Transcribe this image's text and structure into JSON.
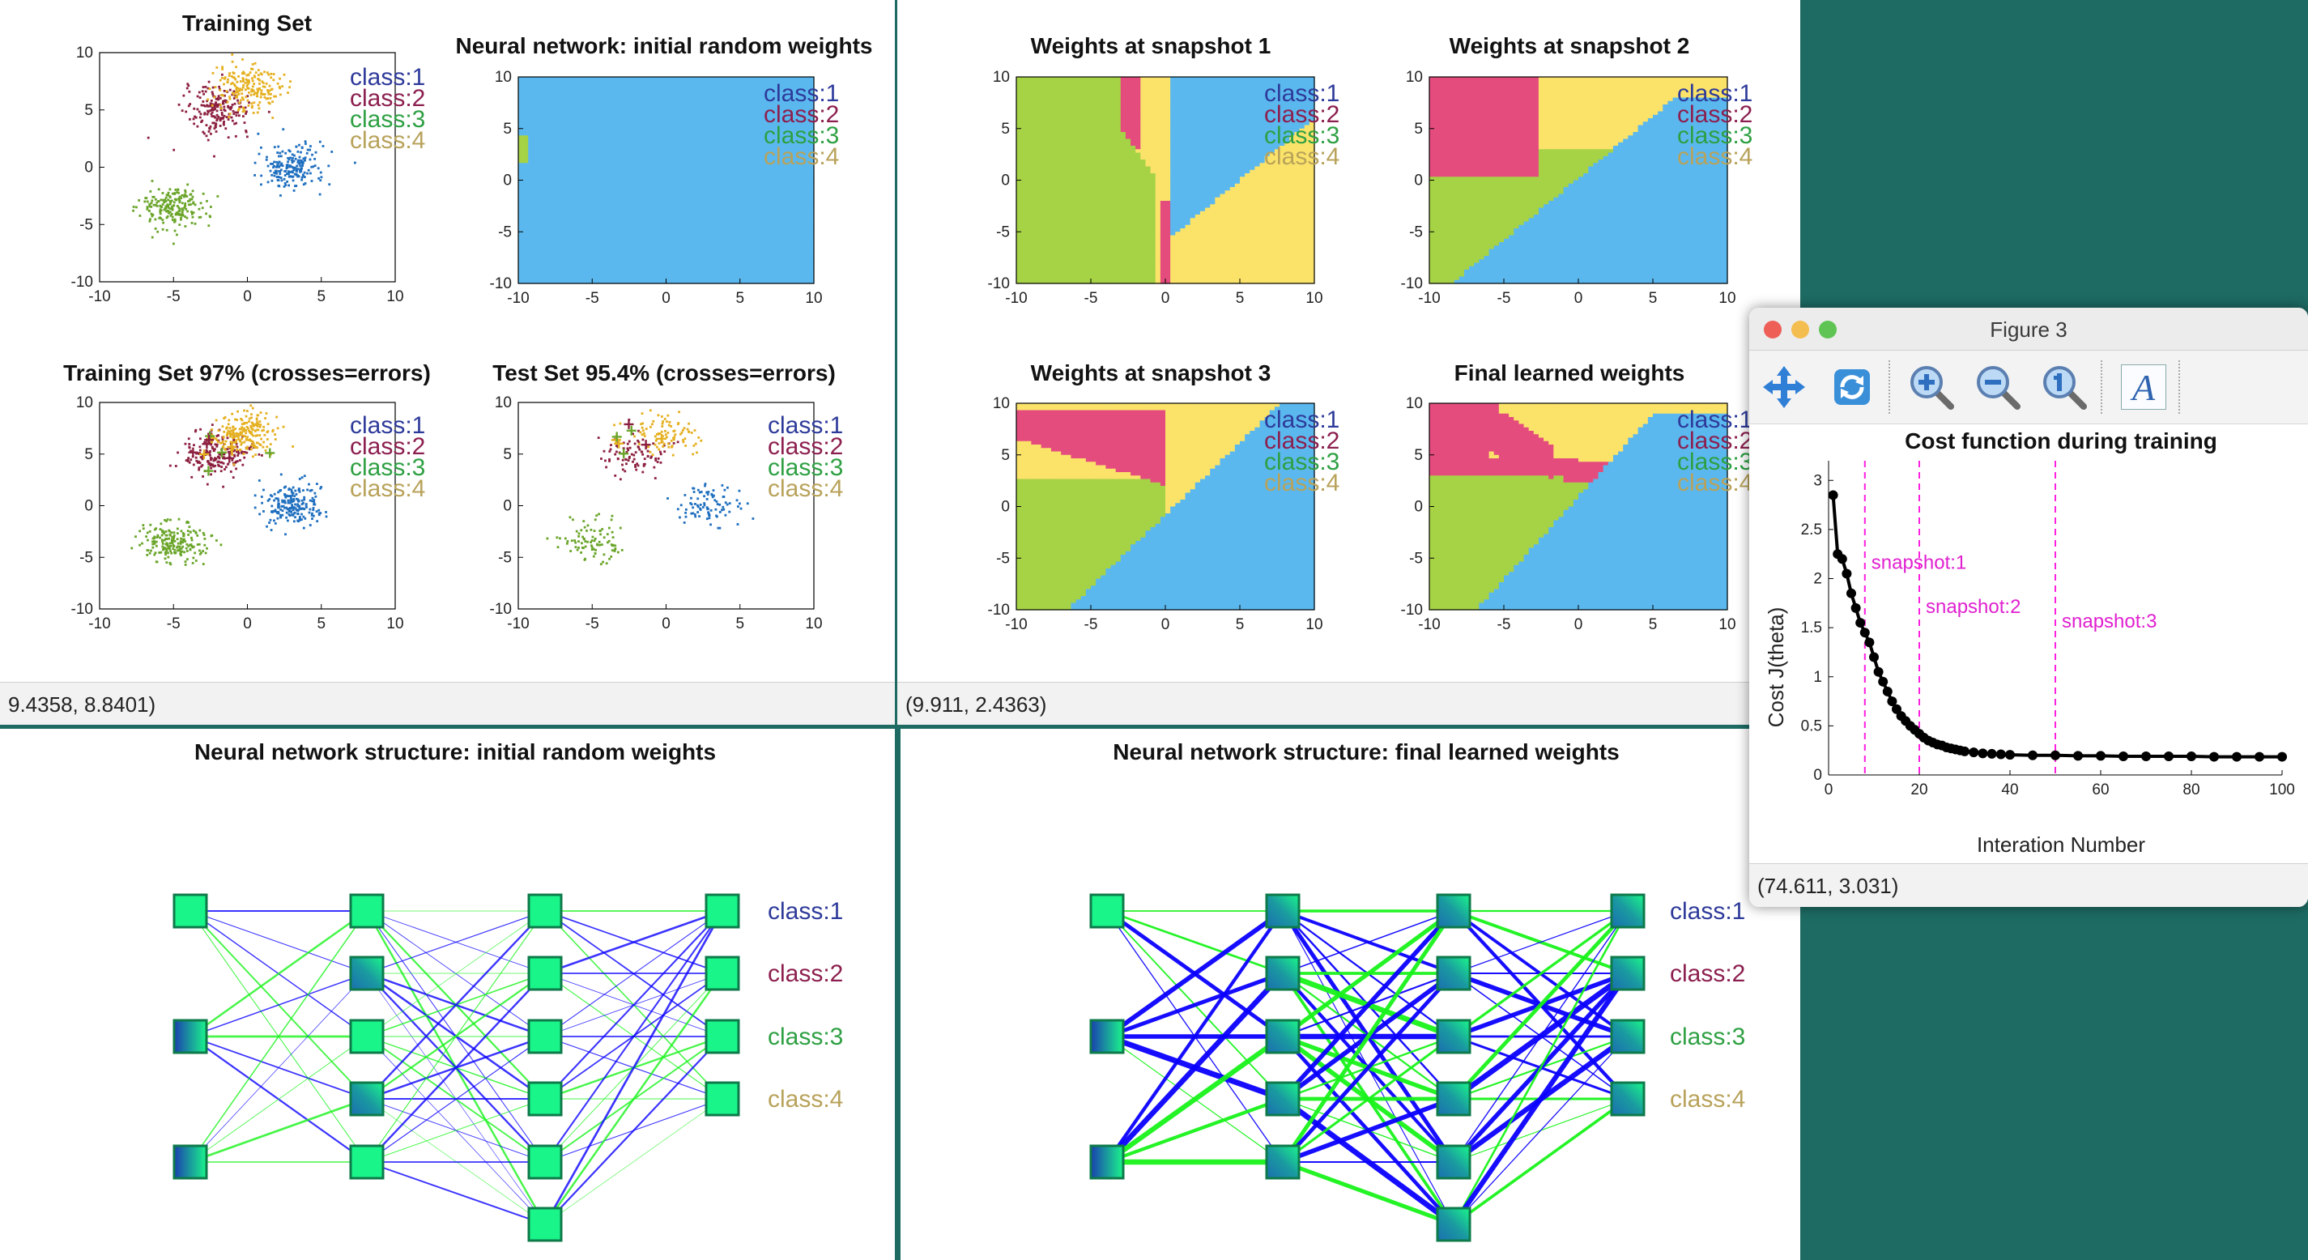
{
  "figure1": {
    "plots": [
      {
        "title": "Training Set",
        "kind": "scatter"
      },
      {
        "title": "Neural network: initial random weights",
        "kind": "region"
      },
      {
        "title": "Training Set 97% (crosses=errors)",
        "kind": "scatter"
      },
      {
        "title": "Test Set 95.4% (crosses=errors)",
        "kind": "scatter"
      }
    ],
    "status": "9.4358, 8.8401)"
  },
  "figure2": {
    "plots": [
      {
        "title": "Weights at snapshot 1"
      },
      {
        "title": "Weights at snapshot 2"
      },
      {
        "title": "Weights at snapshot 3"
      },
      {
        "title": "Final learned weights"
      }
    ],
    "status": "(9.911, 2.4363)"
  },
  "net_initial": {
    "title": "Neural network structure: initial random weights"
  },
  "net_final": {
    "title": "Neural network structure: final learned weights"
  },
  "legend": [
    {
      "label": "class:1",
      "color": "#2e3a9a"
    },
    {
      "label": "class:2",
      "color": "#8c1f4f"
    },
    {
      "label": "class:3",
      "color": "#2ea043"
    },
    {
      "label": "class:4",
      "color": "#b8a25a"
    }
  ],
  "axis": {
    "xticks": [
      "-10",
      "-5",
      "0",
      "5",
      "10"
    ],
    "yticks": [
      "10",
      "5",
      "0",
      "-5",
      "-10"
    ]
  },
  "figure3": {
    "window_title": "Figure 3",
    "toolbar": [
      {
        "name": "pan-icon"
      },
      {
        "name": "rotate-icon"
      },
      {
        "name": "zoom-in-icon"
      },
      {
        "name": "zoom-out-icon"
      },
      {
        "name": "zoom-reset-icon"
      },
      {
        "name": "text-insert-icon",
        "glyph": "A"
      }
    ],
    "status": "(74.611, 3.031)"
  },
  "chart_data": {
    "type": "line",
    "title": "Cost function during training",
    "xlabel": "Interation Number",
    "ylabel": "Cost J(theta)",
    "xlim": [
      0,
      100
    ],
    "ylim": [
      0,
      3.2
    ],
    "xticks": [
      "0",
      "20",
      "40",
      "60",
      "80",
      "100"
    ],
    "yticks": [
      "0",
      "0.5",
      "1",
      "1.5",
      "2",
      "2.5",
      "3"
    ],
    "series": [
      {
        "x": [
          1,
          2,
          3,
          4,
          5,
          6,
          7,
          8,
          9,
          10,
          11,
          12,
          13,
          14,
          15,
          16,
          17,
          18,
          19,
          20,
          21,
          22,
          23,
          24,
          25,
          26,
          27,
          28,
          29,
          30,
          32,
          34,
          36,
          38,
          40,
          45,
          50,
          55,
          60,
          65,
          70,
          75,
          80,
          85,
          90,
          95,
          100
        ],
        "values": [
          2.85,
          2.25,
          2.2,
          2.05,
          1.85,
          1.7,
          1.55,
          1.45,
          1.35,
          1.2,
          1.05,
          0.95,
          0.85,
          0.75,
          0.67,
          0.6,
          0.55,
          0.5,
          0.46,
          0.42,
          0.38,
          0.35,
          0.33,
          0.31,
          0.3,
          0.28,
          0.27,
          0.26,
          0.25,
          0.24,
          0.23,
          0.22,
          0.215,
          0.21,
          0.205,
          0.2,
          0.2,
          0.195,
          0.195,
          0.19,
          0.19,
          0.19,
          0.19,
          0.185,
          0.185,
          0.185,
          0.185
        ]
      }
    ],
    "snapshots": [
      {
        "label": "snapshot:1",
        "x": 8,
        "label_y": 2.1
      },
      {
        "label": "snapshot:2",
        "x": 20,
        "label_y": 1.65
      },
      {
        "label": "snapshot:3",
        "x": 50,
        "label_y": 1.5
      }
    ]
  }
}
